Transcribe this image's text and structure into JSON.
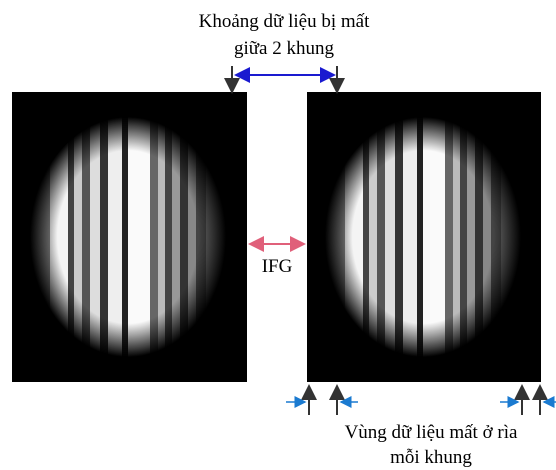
{
  "annotations": {
    "missing_gap": [
      "Khoảng dữ liệu bị mất",
      "giữa 2 khung"
    ],
    "ifg": "IFG",
    "edge_loss": [
      "Vùng dữ liệu mất ở rìa",
      "mỗi khung"
    ]
  }
}
